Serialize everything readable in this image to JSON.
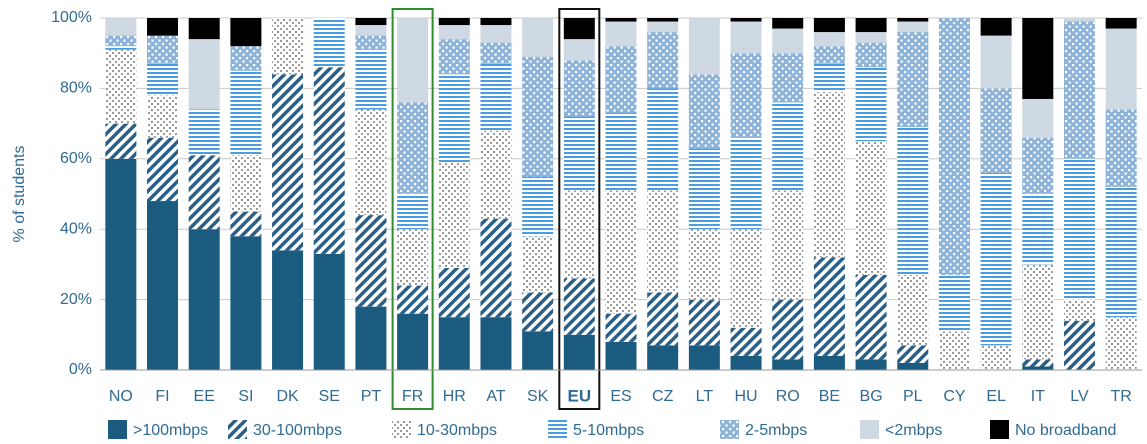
{
  "chart_data": {
    "type": "stacked_bar",
    "y_label": "% of students",
    "categories": [
      "NO",
      "FI",
      "EE",
      "SI",
      "DK",
      "SE",
      "PT",
      "FR",
      "HR",
      "AT",
      "SK",
      "EU",
      "ES",
      "CZ",
      "LT",
      "HU",
      "RO",
      "BE",
      "BG",
      "PL",
      "CY",
      "EL",
      "IT",
      "LV",
      "TR"
    ],
    "series": [
      {
        "name": ">100mbps",
        "color": "#1b5b80",
        "values": [
          60,
          48,
          40,
          38,
          34,
          33,
          18,
          16,
          15,
          15,
          11,
          10,
          8,
          7,
          7,
          4,
          3,
          4,
          3,
          2,
          0,
          0,
          1,
          0,
          0
        ]
      },
      {
        "name": "30-100mbps",
        "color": "#2a5f88",
        "values": [
          10,
          18,
          21,
          7,
          50,
          53,
          26,
          8,
          14,
          28,
          11,
          16,
          8,
          15,
          13,
          8,
          17,
          28,
          24,
          5,
          0,
          0,
          2,
          14,
          0
        ]
      },
      {
        "name": "10-30mbps",
        "color": "#9a9a9a",
        "values": [
          21,
          12,
          0,
          16,
          16,
          0,
          30,
          16,
          30,
          25,
          16,
          25,
          35,
          29,
          20,
          28,
          31,
          47,
          38,
          20,
          11,
          7,
          27,
          6,
          15
        ]
      },
      {
        "name": "5-10mbps",
        "color": "#4a9ee0",
        "values": [
          1,
          9,
          13,
          24,
          0,
          14,
          17,
          10,
          25,
          19,
          17,
          21,
          22,
          29,
          23,
          26,
          25,
          8,
          21,
          42,
          16,
          49,
          20,
          40,
          37
        ]
      },
      {
        "name": "2-5mbps",
        "color": "#8db3d9",
        "values": [
          3,
          8,
          0,
          7,
          0,
          0,
          4,
          26,
          10,
          6,
          34,
          16,
          19,
          16,
          21,
          24,
          14,
          5,
          7,
          27,
          73,
          24,
          16,
          39,
          22
        ]
      },
      {
        "name": "<2mbps",
        "color": "#cfd9e3",
        "values": [
          5,
          0,
          20,
          0,
          0,
          0,
          3,
          24,
          4,
          5,
          11,
          6,
          7,
          3,
          16,
          9,
          7,
          4,
          3,
          3,
          0,
          15,
          11,
          1,
          23
        ]
      },
      {
        "name": "No broadband",
        "color": "#000000",
        "values": [
          0,
          5,
          6,
          8,
          0,
          0,
          2,
          0,
          2,
          2,
          0,
          6,
          1,
          1,
          0,
          1,
          3,
          4,
          4,
          1,
          0,
          5,
          23,
          0,
          3
        ]
      }
    ],
    "ylim": [
      0,
      100
    ],
    "yticks": [
      {
        "value": 0,
        "label": "0%"
      },
      {
        "value": 20,
        "label": "20%"
      },
      {
        "value": 40,
        "label": "40%"
      },
      {
        "value": 60,
        "label": "60%"
      },
      {
        "value": 80,
        "label": "80%"
      },
      {
        "value": 100,
        "label": "100%"
      }
    ],
    "grid": true
  }
}
